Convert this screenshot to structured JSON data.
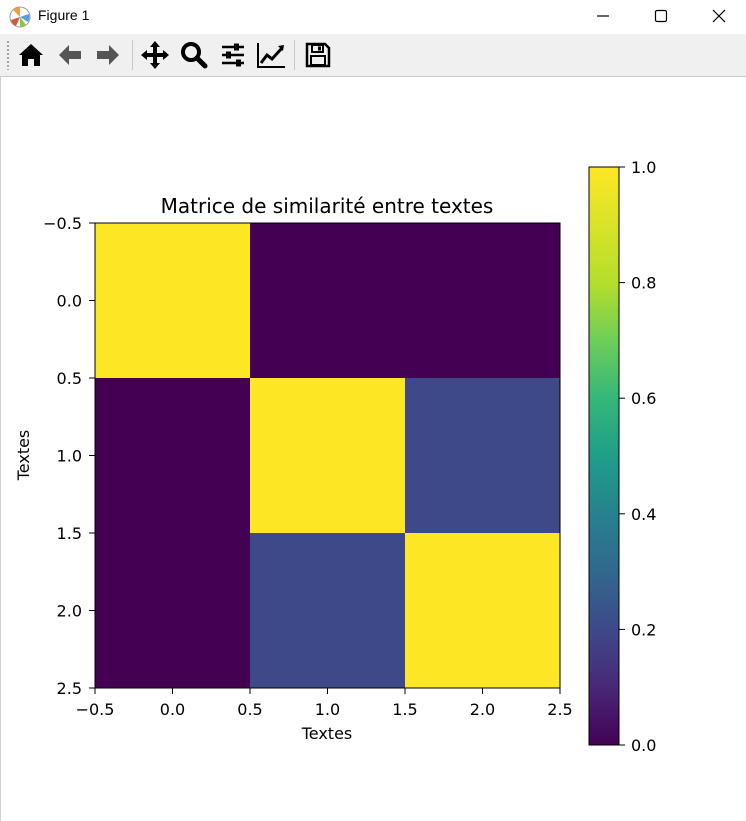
{
  "window": {
    "title": "Figure 1"
  },
  "icons": {
    "app": "matplotlib-icon",
    "minimize": "minimize-icon",
    "maximize": "maximize-icon",
    "close": "close-icon"
  },
  "toolbar": {
    "tools": [
      {
        "name": "home",
        "icon": "home-icon"
      },
      {
        "name": "back",
        "icon": "arrow-left-icon"
      },
      {
        "name": "forward",
        "icon": "arrow-right-icon"
      },
      {
        "name": "pan",
        "icon": "move-icon"
      },
      {
        "name": "zoom",
        "icon": "magnifier-icon"
      },
      {
        "name": "subplots",
        "icon": "sliders-icon"
      },
      {
        "name": "customize",
        "icon": "line-chart-icon"
      },
      {
        "name": "save",
        "icon": "floppy-disk-icon"
      }
    ]
  },
  "chart_data": {
    "type": "heatmap",
    "title": "Matrice de similarité entre textes",
    "xlabel": "Textes",
    "ylabel": "Textes",
    "xlim": [
      -0.5,
      2.5
    ],
    "ylim": [
      2.5,
      -0.5
    ],
    "x_ticks": [
      "−0.5",
      "0.0",
      "0.5",
      "1.0",
      "1.5",
      "2.0",
      "2.5"
    ],
    "y_ticks": [
      "−0.5",
      "0.0",
      "0.5",
      "1.0",
      "1.5",
      "2.0",
      "2.5"
    ],
    "matrix": [
      [
        1.0,
        0.0,
        0.0
      ],
      [
        0.0,
        1.0,
        0.2
      ],
      [
        0.0,
        0.2,
        1.0
      ]
    ],
    "colormap": "viridis",
    "colorbar": {
      "range": [
        0.0,
        1.0
      ],
      "ticks": [
        "0.0",
        "0.2",
        "0.4",
        "0.6",
        "0.8",
        "1.0"
      ]
    }
  }
}
